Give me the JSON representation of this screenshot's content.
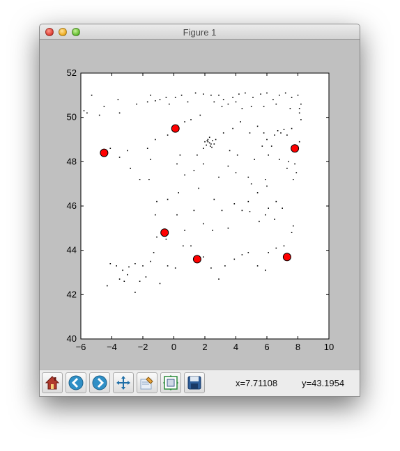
{
  "window": {
    "title": "Figure 1"
  },
  "chart_data": {
    "type": "scatter",
    "title": "",
    "xlabel": "",
    "ylabel": "",
    "xlim": [
      -6,
      10
    ],
    "ylim": [
      40,
      52
    ],
    "xticks": [
      -6,
      -4,
      -2,
      0,
      2,
      4,
      6,
      8,
      10
    ],
    "yticks": [
      40,
      42,
      44,
      46,
      48,
      50,
      52
    ],
    "xtick_labels": [
      "−6",
      "−4",
      "−2",
      "0",
      "2",
      "4",
      "6",
      "8",
      "10"
    ],
    "ytick_labels": [
      "40",
      "42",
      "44",
      "46",
      "48",
      "50",
      "52"
    ],
    "grid": false,
    "series": [
      {
        "marker": "small black dots",
        "color": "#000000",
        "points": [
          [
            -5.3,
            51.0
          ],
          [
            -5.6,
            50.2
          ],
          [
            -5.8,
            50.3
          ],
          [
            -4.8,
            50.1
          ],
          [
            -4.5,
            50.5
          ],
          [
            -3.5,
            50.2
          ],
          [
            -3.6,
            50.8
          ],
          [
            -2.4,
            50.6
          ],
          [
            -1.7,
            50.7
          ],
          [
            -1.5,
            51.0
          ],
          [
            -1.2,
            50.75
          ],
          [
            -0.9,
            50.8
          ],
          [
            -0.5,
            50.9
          ],
          [
            -0.3,
            50.6
          ],
          [
            0.1,
            50.9
          ],
          [
            0.5,
            51.0
          ],
          [
            0.9,
            50.7
          ],
          [
            1.4,
            51.1
          ],
          [
            1.9,
            51.05
          ],
          [
            2.4,
            51.0
          ],
          [
            2.9,
            51.0
          ],
          [
            3.2,
            50.8
          ],
          [
            3.8,
            50.9
          ],
          [
            4.2,
            51.05
          ],
          [
            4.6,
            51.1
          ],
          [
            5.1,
            50.9
          ],
          [
            5.6,
            51.05
          ],
          [
            6.0,
            51.1
          ],
          [
            6.4,
            50.8
          ],
          [
            6.8,
            51.0
          ],
          [
            7.2,
            51.1
          ],
          [
            7.6,
            50.9
          ],
          [
            8.0,
            51.0
          ],
          [
            8.2,
            50.6
          ],
          [
            2.6,
            50.7
          ],
          [
            3.1,
            50.5
          ],
          [
            3.5,
            50.6
          ],
          [
            4.0,
            50.7
          ],
          [
            4.4,
            50.4
          ],
          [
            5.0,
            50.5
          ],
          [
            5.8,
            50.5
          ],
          [
            6.6,
            50.6
          ],
          [
            7.5,
            50.4
          ],
          [
            8.1,
            50.2
          ],
          [
            2.3,
            48.85
          ],
          [
            2.2,
            48.9
          ],
          [
            2.4,
            48.8
          ],
          [
            2.1,
            48.75
          ],
          [
            2.5,
            48.95
          ],
          [
            2.2,
            49.0
          ],
          [
            2.35,
            48.7
          ],
          [
            2.0,
            48.9
          ],
          [
            2.6,
            48.8
          ],
          [
            2.3,
            49.1
          ],
          [
            1.9,
            48.6
          ],
          [
            2.7,
            49.0
          ],
          [
            2.15,
            48.95
          ],
          [
            2.45,
            48.65
          ],
          [
            6.7,
            49.4
          ],
          [
            6.9,
            49.3
          ],
          [
            7.1,
            49.45
          ],
          [
            7.3,
            49.2
          ],
          [
            7.6,
            49.5
          ],
          [
            6.5,
            49.2
          ],
          [
            6.0,
            49.0
          ],
          [
            6.3,
            48.7
          ],
          [
            5.8,
            49.3
          ],
          [
            5.4,
            49.6
          ],
          [
            4.9,
            49.3
          ],
          [
            4.3,
            49.8
          ],
          [
            3.8,
            49.5
          ],
          [
            3.2,
            49.3
          ],
          [
            3.6,
            48.5
          ],
          [
            4.1,
            48.3
          ],
          [
            5.2,
            48.1
          ],
          [
            5.7,
            48.7
          ],
          [
            6.1,
            48.3
          ],
          [
            6.8,
            48.1
          ],
          [
            7.4,
            48.0
          ],
          [
            7.8,
            47.9
          ],
          [
            7.9,
            47.5
          ],
          [
            7.7,
            47.2
          ],
          [
            7.3,
            47.7
          ],
          [
            8.1,
            48.9
          ],
          [
            8.2,
            49.9
          ],
          [
            8.1,
            50.4
          ],
          [
            -4.5,
            48.4
          ],
          [
            -4.1,
            48.6
          ],
          [
            -3.5,
            48.2
          ],
          [
            -3.0,
            48.5
          ],
          [
            -2.8,
            47.7
          ],
          [
            -2.2,
            47.2
          ],
          [
            -1.6,
            47.2
          ],
          [
            -1.5,
            48.1
          ],
          [
            -1.7,
            48.6
          ],
          [
            -1.2,
            49.0
          ],
          [
            -0.4,
            49.2
          ],
          [
            0.1,
            49.5
          ],
          [
            0.7,
            49.8
          ],
          [
            1.1,
            49.9
          ],
          [
            1.7,
            50.1
          ],
          [
            0.4,
            48.3
          ],
          [
            0.2,
            47.9
          ],
          [
            0.7,
            47.4
          ],
          [
            1.3,
            47.6
          ],
          [
            1.9,
            47.9
          ],
          [
            1.5,
            48.3
          ],
          [
            2.9,
            47.3
          ],
          [
            3.5,
            47.8
          ],
          [
            4.0,
            47.5
          ],
          [
            4.8,
            47.3
          ],
          [
            5.0,
            47.0
          ],
          [
            5.9,
            47.2
          ],
          [
            6.0,
            46.9
          ],
          [
            5.4,
            46.6
          ],
          [
            4.8,
            46.2
          ],
          [
            4.4,
            45.8
          ],
          [
            4.9,
            45.75
          ],
          [
            5.5,
            45.3
          ],
          [
            5.9,
            45.6
          ],
          [
            6.1,
            45.9
          ],
          [
            6.6,
            46.2
          ],
          [
            7.0,
            45.9
          ],
          [
            6.5,
            45.4
          ],
          [
            7.7,
            45.1
          ],
          [
            7.6,
            44.8
          ],
          [
            7.1,
            44.2
          ],
          [
            6.6,
            44.1
          ],
          [
            6.1,
            43.9
          ],
          [
            5.4,
            43.3
          ],
          [
            5.9,
            43.1
          ],
          [
            4.8,
            43.9
          ],
          [
            4.4,
            43.8
          ],
          [
            3.9,
            43.6
          ],
          [
            3.3,
            43.3
          ],
          [
            2.9,
            42.7
          ],
          [
            2.4,
            43.2
          ],
          [
            1.9,
            43.7
          ],
          [
            1.4,
            43.6
          ],
          [
            1.1,
            44.2
          ],
          [
            0.6,
            44.2
          ],
          [
            0.7,
            44.9
          ],
          [
            0.2,
            45.6
          ],
          [
            1.3,
            45.8
          ],
          [
            1.9,
            45.2
          ],
          [
            2.5,
            44.9
          ],
          [
            3.1,
            45.8
          ],
          [
            3.5,
            45.0
          ],
          [
            3.9,
            46.1
          ],
          [
            2.6,
            46.3
          ],
          [
            1.6,
            46.8
          ],
          [
            0.3,
            46.6
          ],
          [
            -0.4,
            46.3
          ],
          [
            -1.1,
            46.2
          ],
          [
            -1.2,
            45.6
          ],
          [
            -0.6,
            44.8
          ],
          [
            -0.5,
            44.5
          ],
          [
            -1.1,
            44.6
          ],
          [
            -1.3,
            43.9
          ],
          [
            -1.5,
            43.5
          ],
          [
            -0.4,
            43.3
          ],
          [
            0.1,
            43.2
          ],
          [
            -2.0,
            43.3
          ],
          [
            -2.5,
            43.4
          ],
          [
            -2.9,
            43.25
          ],
          [
            -3.3,
            43.1
          ],
          [
            -3.7,
            43.3
          ],
          [
            -4.1,
            43.4
          ],
          [
            -4.3,
            42.4
          ],
          [
            -3.2,
            42.6
          ],
          [
            -2.5,
            42.1
          ],
          [
            -1.8,
            42.8
          ],
          [
            -0.9,
            42.5
          ],
          [
            -2.2,
            42.6
          ],
          [
            -3.0,
            42.9
          ],
          [
            -3.5,
            42.7
          ]
        ]
      },
      {
        "marker": "large red circles",
        "color": "#ff0000",
        "points": [
          [
            -4.5,
            48.4
          ],
          [
            0.1,
            49.5
          ],
          [
            7.8,
            48.6
          ],
          [
            -0.6,
            44.8
          ],
          [
            1.5,
            43.6
          ],
          [
            7.3,
            43.7
          ]
        ]
      }
    ]
  },
  "toolbar": {
    "buttons": [
      {
        "name": "home-icon"
      },
      {
        "name": "back-icon"
      },
      {
        "name": "forward-icon"
      },
      {
        "name": "pan-icon"
      },
      {
        "name": "zoom-icon"
      },
      {
        "name": "subplots-icon"
      },
      {
        "name": "save-icon"
      }
    ],
    "x_readout": "x=7.71108",
    "y_readout": "y=43.1954"
  }
}
